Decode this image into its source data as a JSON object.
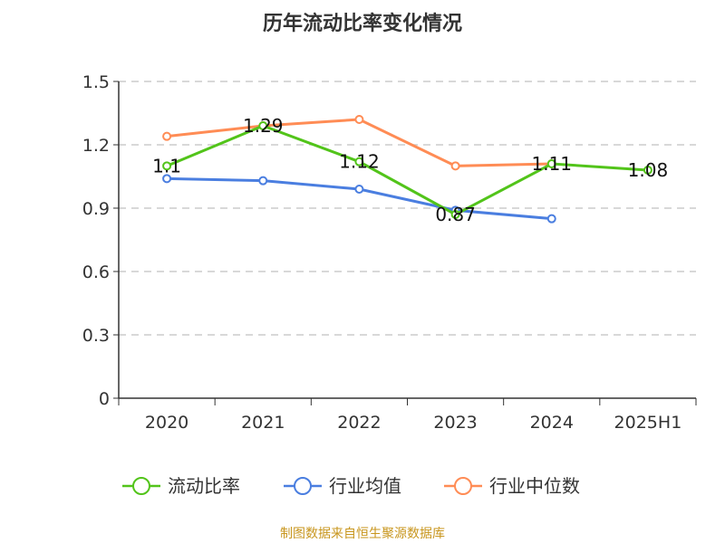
{
  "chart_data": {
    "type": "line",
    "title": "历年流动比率变化情况",
    "categories": [
      "2020",
      "2021",
      "2022",
      "2023",
      "2024",
      "2025H1"
    ],
    "ylim": [
      0,
      1.5
    ],
    "yticks": [
      "0",
      "0.3",
      "0.6",
      "0.9",
      "1.2",
      "1.5"
    ],
    "grid": true,
    "legend_position": "bottom",
    "series": [
      {
        "name": "流动比率",
        "color": "#52c41a",
        "values": [
          1.1,
          1.29,
          1.12,
          0.87,
          1.11,
          1.08
        ],
        "labels": [
          "1.1",
          "1.29",
          "1.12",
          "0.87",
          "1.11",
          "1.08"
        ]
      },
      {
        "name": "行业均值",
        "color": "#4a7ee0",
        "values": [
          1.04,
          1.03,
          0.99,
          0.89,
          0.85,
          null
        ]
      },
      {
        "name": "行业中位数",
        "color": "#ff8c55",
        "values": [
          1.24,
          1.29,
          1.32,
          1.1,
          1.11,
          null
        ]
      }
    ],
    "source": "制图数据来自恒生聚源数据库"
  }
}
